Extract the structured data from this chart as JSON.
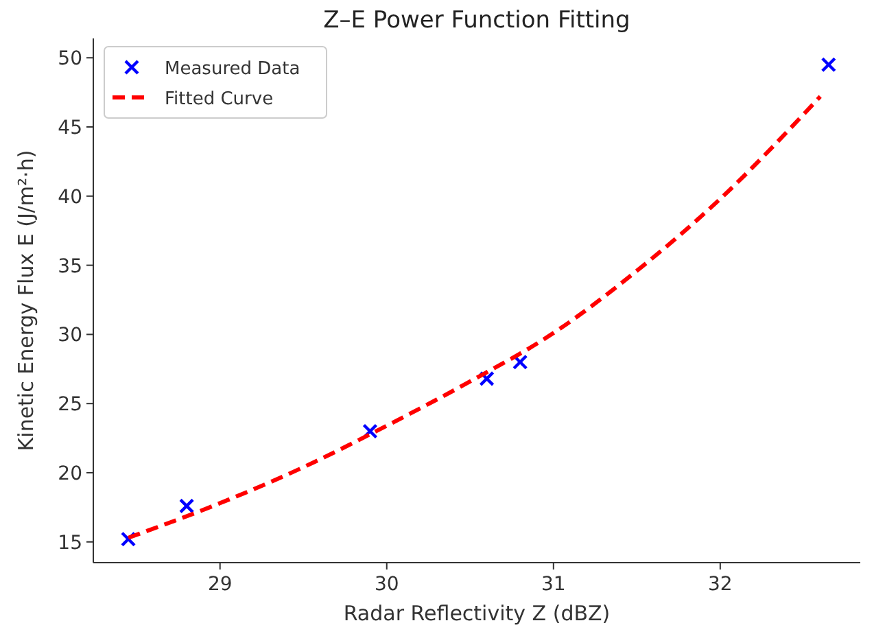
{
  "chart_data": {
    "type": "scatter",
    "title": "Z–E Power Function Fitting",
    "xlabel": "Radar Reflectivity Z (dBZ)",
    "ylabel": "Kinetic Energy Flux E (J/m²·h)",
    "xlim": [
      28.24,
      32.84
    ],
    "xticks": [
      29,
      30,
      31,
      32
    ],
    "ylim": [
      13.5,
      51.4
    ],
    "yticks": [
      15,
      20,
      25,
      30,
      35,
      40,
      45,
      50
    ],
    "legend": "top left",
    "grid": false,
    "series": [
      {
        "name": "Measured Data",
        "marker": "cross",
        "color": "#0000ff",
        "x": [
          28.45,
          28.8,
          29.9,
          30.6,
          30.8,
          32.65
        ],
        "values": [
          15.2,
          17.6,
          23.0,
          26.8,
          28.0,
          49.5
        ]
      },
      {
        "name": "Fitted Curve",
        "type": "line",
        "line_style": "dashed",
        "marker": "none",
        "color": "#ff0000",
        "x": [
          28.45,
          29,
          29.5,
          30,
          30.5,
          31,
          31.5,
          32,
          32.6
        ],
        "values": [
          15.3,
          17.8,
          20.4,
          23.4,
          26.6,
          30.1,
          34.6,
          39.8,
          47.2
        ]
      }
    ]
  }
}
